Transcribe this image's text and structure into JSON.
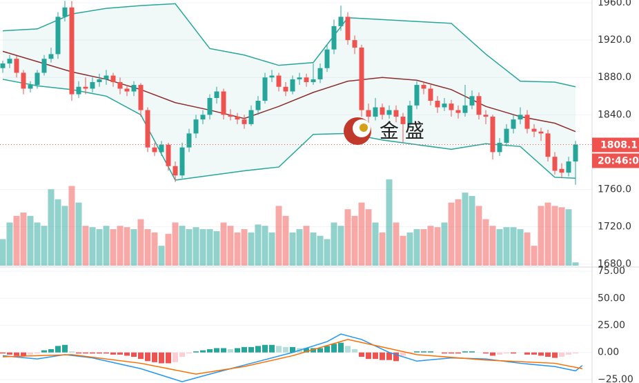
{
  "chart_data": [
    {
      "type": "candlestick",
      "up_color": "#26a69a",
      "down_color": "#ef5350",
      "ylim": [
        1678.3,
        1963
      ],
      "yticks": [
        {
          "value": 1680,
          "label": "1680.0"
        },
        {
          "value": 1720,
          "label": "1720.0"
        },
        {
          "value": 1760,
          "label": "1760.0"
        },
        {
          "value": 1840,
          "label": "1840.0"
        },
        {
          "value": 1880,
          "label": "1880.0"
        },
        {
          "value": 1920,
          "label": "1920.0"
        },
        {
          "value": 1960,
          "label": "1960.0"
        }
      ],
      "grid": true,
      "ohlc": [
        [
          1890,
          1898,
          1885,
          1895
        ],
        [
          1895,
          1904,
          1890,
          1900
        ],
        [
          1900,
          1903,
          1880,
          1885
        ],
        [
          1885,
          1888,
          1862,
          1868
        ],
        [
          1868,
          1876,
          1864,
          1872
        ],
        [
          1872,
          1888,
          1868,
          1885
        ],
        [
          1885,
          1904,
          1882,
          1900
        ],
        [
          1900,
          1912,
          1896,
          1905
        ],
        [
          1905,
          1950,
          1900,
          1945
        ],
        [
          1945,
          1962,
          1940,
          1955
        ],
        [
          1955,
          1962,
          1855,
          1862
        ],
        [
          1862,
          1876,
          1858,
          1870
        ],
        [
          1870,
          1880,
          1862,
          1868
        ],
        [
          1868,
          1880,
          1864,
          1875
        ],
        [
          1875,
          1884,
          1870,
          1878
        ],
        [
          1878,
          1888,
          1872,
          1882
        ],
        [
          1882,
          1885,
          1870,
          1875
        ],
        [
          1875,
          1880,
          1862,
          1868
        ],
        [
          1868,
          1872,
          1860,
          1865
        ],
        [
          1865,
          1876,
          1860,
          1872
        ],
        [
          1872,
          1874,
          1838,
          1845
        ],
        [
          1845,
          1848,
          1800,
          1805
        ],
        [
          1805,
          1810,
          1796,
          1800
        ],
        [
          1800,
          1812,
          1796,
          1808
        ],
        [
          1808,
          1810,
          1780,
          1785
        ],
        [
          1785,
          1790,
          1768,
          1775
        ],
        [
          1775,
          1810,
          1772,
          1805
        ],
        [
          1805,
          1825,
          1800,
          1820
        ],
        [
          1820,
          1840,
          1815,
          1835
        ],
        [
          1835,
          1845,
          1830,
          1840
        ],
        [
          1840,
          1862,
          1835,
          1858
        ],
        [
          1858,
          1870,
          1852,
          1865
        ],
        [
          1865,
          1868,
          1835,
          1840
        ],
        [
          1840,
          1846,
          1834,
          1838
        ],
        [
          1838,
          1842,
          1830,
          1835
        ],
        [
          1835,
          1840,
          1825,
          1830
        ],
        [
          1830,
          1850,
          1828,
          1845
        ],
        [
          1845,
          1860,
          1840,
          1855
        ],
        [
          1855,
          1885,
          1852,
          1880
        ],
        [
          1880,
          1888,
          1875,
          1882
        ],
        [
          1882,
          1885,
          1865,
          1870
        ],
        [
          1870,
          1875,
          1860,
          1865
        ],
        [
          1865,
          1882,
          1862,
          1878
        ],
        [
          1878,
          1885,
          1872,
          1880
        ],
        [
          1880,
          1884,
          1870,
          1875
        ],
        [
          1875,
          1895,
          1872,
          1878
        ],
        [
          1878,
          1895,
          1874,
          1890
        ],
        [
          1890,
          1915,
          1886,
          1910
        ],
        [
          1910,
          1942,
          1905,
          1935
        ],
        [
          1935,
          1957,
          1930,
          1945
        ],
        [
          1945,
          1950,
          1915,
          1920
        ],
        [
          1920,
          1925,
          1905,
          1912
        ],
        [
          1912,
          1915,
          1838,
          1845
        ],
        [
          1845,
          1852,
          1830,
          1838
        ],
        [
          1838,
          1858,
          1834,
          1848
        ],
        [
          1848,
          1852,
          1835,
          1840
        ],
        [
          1840,
          1850,
          1836,
          1845
        ],
        [
          1845,
          1850,
          1832,
          1838
        ],
        [
          1838,
          1842,
          1810,
          1830
        ],
        [
          1830,
          1855,
          1826,
          1850
        ],
        [
          1850,
          1876,
          1846,
          1872
        ],
        [
          1872,
          1875,
          1862,
          1868
        ],
        [
          1868,
          1872,
          1850,
          1855
        ],
        [
          1855,
          1860,
          1842,
          1848
        ],
        [
          1848,
          1858,
          1844,
          1852
        ],
        [
          1852,
          1856,
          1838,
          1845
        ],
        [
          1845,
          1850,
          1836,
          1842
        ],
        [
          1842,
          1872,
          1838,
          1850
        ],
        [
          1850,
          1866,
          1846,
          1860
        ],
        [
          1860,
          1864,
          1835,
          1840
        ],
        [
          1840,
          1845,
          1830,
          1838
        ],
        [
          1838,
          1840,
          1792,
          1800
        ],
        [
          1800,
          1815,
          1796,
          1810
        ],
        [
          1810,
          1830,
          1806,
          1825
        ],
        [
          1825,
          1840,
          1820,
          1835
        ],
        [
          1835,
          1848,
          1830,
          1840
        ],
        [
          1840,
          1845,
          1820,
          1825
        ],
        [
          1825,
          1830,
          1816,
          1822
        ],
        [
          1822,
          1826,
          1812,
          1820
        ],
        [
          1820,
          1824,
          1790,
          1795
        ],
        [
          1795,
          1800,
          1776,
          1780
        ],
        [
          1782,
          1788,
          1772,
          1778
        ],
        [
          1778,
          1795,
          1774,
          1790
        ],
        [
          1790,
          1812,
          1765,
          1808.1
        ]
      ],
      "volume": [
        40,
        65,
        75,
        80,
        75,
        65,
        60,
        115,
        100,
        90,
        120,
        95,
        60,
        58,
        55,
        60,
        55,
        60,
        58,
        55,
        70,
        55,
        50,
        30,
        48,
        65,
        60,
        55,
        58,
        55,
        55,
        52,
        65,
        60,
        50,
        55,
        50,
        62,
        60,
        50,
        90,
        75,
        50,
        55,
        60,
        50,
        45,
        40,
        65,
        60,
        85,
        75,
        95,
        85,
        65,
        50,
        130,
        65,
        45,
        50,
        55,
        55,
        60,
        58,
        65,
        95,
        100,
        110,
        105,
        90,
        70,
        60,
        55,
        58,
        58,
        55,
        50,
        30,
        90,
        95,
        90,
        88,
        85,
        5
      ],
      "volume_lim": [
        0,
        400
      ],
      "series": [
        {
          "color": "#26a69a",
          "x": [
            0,
            5,
            10,
            15,
            20,
            25,
            30,
            35,
            40,
            45,
            50,
            55,
            60,
            65,
            70,
            75,
            80,
            83
          ],
          "values": [
            1930,
            1932,
            1948,
            1954,
            1957,
            1959,
            1911,
            1904,
            1893,
            1896,
            1944,
            1942,
            1940,
            1938,
            1905,
            1876,
            1875,
            1870
          ]
        },
        {
          "color": "#8d2c2c",
          "x": [
            0,
            5,
            10,
            15,
            20,
            25,
            30,
            35,
            40,
            45,
            50,
            55,
            60,
            65,
            70,
            75,
            80,
            83
          ],
          "values": [
            1908,
            1897,
            1886,
            1878,
            1867,
            1853,
            1845,
            1836,
            1849,
            1864,
            1876,
            1880,
            1877,
            1867,
            1849,
            1838,
            1831,
            1822
          ]
        },
        {
          "color": "#26a69a",
          "x": [
            0,
            5,
            10,
            15,
            20,
            25,
            30,
            35,
            40,
            45,
            50,
            55,
            60,
            65,
            70,
            75,
            80,
            83
          ],
          "values": [
            1878,
            1871,
            1867,
            1860,
            1840,
            1770,
            1775,
            1780,
            1784,
            1819,
            1820,
            1813,
            1808,
            1803,
            1809,
            1806,
            1773,
            1772
          ]
        }
      ],
      "last_price": 1808.1,
      "countdown": "20:46:0",
      "watermark": "金 盛"
    },
    {
      "type": "macd",
      "y2lim": [
        -28.2,
        78.2
      ],
      "y2ticks": [
        {
          "value": 75,
          "label": "75.00"
        },
        {
          "value": 50,
          "label": "50.00"
        },
        {
          "value": 25,
          "label": "25.00"
        },
        {
          "value": 0,
          "label": "0.00"
        },
        {
          "value": -25,
          "label": "−25.00"
        }
      ],
      "histogram": [
        -1,
        -2,
        -3,
        -3,
        -2,
        -1,
        2,
        3,
        6,
        7,
        1,
        -1,
        -1,
        -1,
        -1,
        -1,
        -2,
        -2,
        -3,
        -4,
        -6,
        -8,
        -9,
        -10,
        -10,
        -9,
        -4,
        -1,
        1,
        2,
        3,
        4,
        4,
        3,
        4,
        5,
        5,
        6,
        7,
        7,
        6,
        5,
        5,
        4,
        4,
        4,
        4,
        6,
        8,
        9,
        6,
        3,
        -4,
        -6,
        -6,
        -7,
        -7,
        -8,
        -3,
        -1,
        1,
        1,
        1,
        0,
        -1,
        -1,
        -1,
        1,
        1,
        0,
        -1,
        -3,
        -2,
        -1,
        -1,
        0,
        -2,
        -2,
        -3,
        -4,
        -5,
        -4,
        -2,
        -1
      ],
      "series": [
        {
          "color": "#2196f3",
          "x": [
            0,
            5,
            9,
            13,
            20,
            26,
            30,
            36,
            42,
            47,
            49,
            52,
            56,
            60,
            65,
            70,
            75,
            80,
            83,
            84
          ],
          "values": [
            -3,
            -6,
            -2,
            -5,
            -15,
            -27,
            -20,
            -10,
            0,
            10,
            17,
            12,
            0,
            -8,
            -5,
            -6,
            -10,
            -13,
            -17,
            -12
          ]
        },
        {
          "color": "#ff6d00",
          "x": [
            0,
            10,
            20,
            28,
            35,
            42,
            50,
            55,
            60,
            70,
            80,
            84
          ],
          "values": [
            -4,
            -2,
            -10,
            -20,
            -13,
            -3,
            12,
            5,
            -2,
            -7,
            -10,
            -15
          ]
        }
      ]
    }
  ]
}
